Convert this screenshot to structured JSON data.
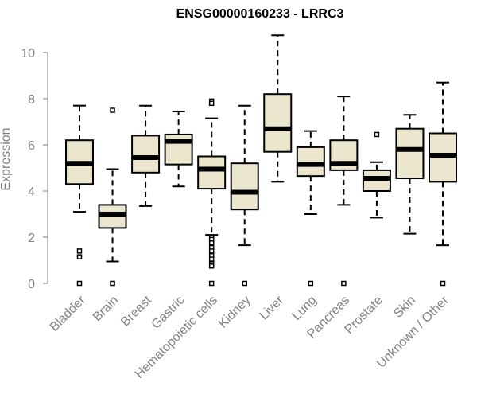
{
  "chart_data": {
    "type": "boxplot",
    "title": "ENSG00000160233 - LRRC3",
    "xlabel": "",
    "ylabel": "Expression",
    "ylim": [
      0,
      10.7
    ],
    "yticks": [
      0,
      2,
      4,
      6,
      8,
      10
    ],
    "grid": false,
    "colors": {
      "box_fill": "#ede6cf",
      "box_stroke": "#000000",
      "axis": "#808080",
      "title": "#000000"
    },
    "categories": [
      "Bladder",
      "Brain",
      "Breast",
      "Gastric",
      "Hematopoietic cells",
      "Kidney",
      "Liver",
      "Lung",
      "Pancreas",
      "Prostate",
      "Skin",
      "Unknown / Other"
    ],
    "boxes": [
      {
        "name": "Bladder",
        "min": 3.1,
        "q1": 4.3,
        "median": 5.2,
        "q3": 6.2,
        "max": 7.7,
        "outliers": [
          1.4,
          1.15,
          0.0
        ]
      },
      {
        "name": "Brain",
        "min": 0.95,
        "q1": 2.4,
        "median": 3.0,
        "q3": 3.4,
        "max": 4.95,
        "outliers": [
          7.5,
          0.0
        ]
      },
      {
        "name": "Breast",
        "min": 3.35,
        "q1": 4.8,
        "median": 5.45,
        "q3": 6.4,
        "max": 7.7,
        "outliers": []
      },
      {
        "name": "Gastric",
        "min": 4.2,
        "q1": 5.15,
        "median": 6.15,
        "q3": 6.45,
        "max": 7.45,
        "outliers": []
      },
      {
        "name": "Hematopoietic cells",
        "min": 2.1,
        "q1": 4.1,
        "median": 4.95,
        "q3": 5.5,
        "max": 7.15,
        "outliers": [
          7.9,
          7.8,
          2.0,
          1.9,
          1.75,
          1.55,
          1.4,
          1.2,
          1.05,
          0.85,
          0.75,
          0.0
        ]
      },
      {
        "name": "Kidney",
        "min": 1.65,
        "q1": 3.2,
        "median": 3.95,
        "q3": 5.2,
        "max": 7.7,
        "outliers": [
          0.0
        ]
      },
      {
        "name": "Liver",
        "min": 4.4,
        "q1": 5.7,
        "median": 6.7,
        "q3": 8.2,
        "max": 10.75,
        "outliers": []
      },
      {
        "name": "Lung",
        "min": 3.0,
        "q1": 4.65,
        "median": 5.15,
        "q3": 5.9,
        "max": 6.6,
        "outliers": [
          0.0
        ]
      },
      {
        "name": "Pancreas",
        "min": 3.4,
        "q1": 4.9,
        "median": 5.2,
        "q3": 6.2,
        "max": 8.1,
        "outliers": [
          0.0
        ]
      },
      {
        "name": "Prostate",
        "min": 2.85,
        "q1": 4.0,
        "median": 4.55,
        "q3": 4.9,
        "max": 5.25,
        "outliers": [
          6.45
        ]
      },
      {
        "name": "Skin",
        "min": 2.15,
        "q1": 4.55,
        "median": 5.8,
        "q3": 6.7,
        "max": 7.3,
        "outliers": []
      },
      {
        "name": "Unknown / Other",
        "min": 1.65,
        "q1": 4.4,
        "median": 5.55,
        "q3": 6.5,
        "max": 8.7,
        "outliers": [
          0.0
        ]
      }
    ]
  }
}
